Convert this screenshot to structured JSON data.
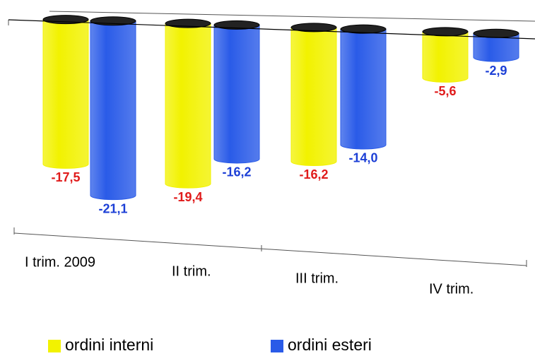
{
  "chart_data": {
    "type": "bar",
    "categories": [
      "I trim. 2009",
      "II trim.",
      "III trim.",
      "IV trim."
    ],
    "series": [
      {
        "name": "ordini interni",
        "color": "#f2f200",
        "label_color": "#e01b1b",
        "values": [
          -17.5,
          -19.4,
          -16.2,
          -5.6
        ],
        "value_labels": [
          "-17,5",
          "-19,4",
          "-16,2",
          "-5,6"
        ]
      },
      {
        "name": "ordini esteri",
        "color": "#2a5be8",
        "label_color": "#1c3fd6",
        "values": [
          -21.1,
          -16.2,
          -14.0,
          -2.9
        ],
        "value_labels": [
          "-21,1",
          "-16,2",
          "-14,0",
          "-2,9"
        ]
      }
    ]
  }
}
